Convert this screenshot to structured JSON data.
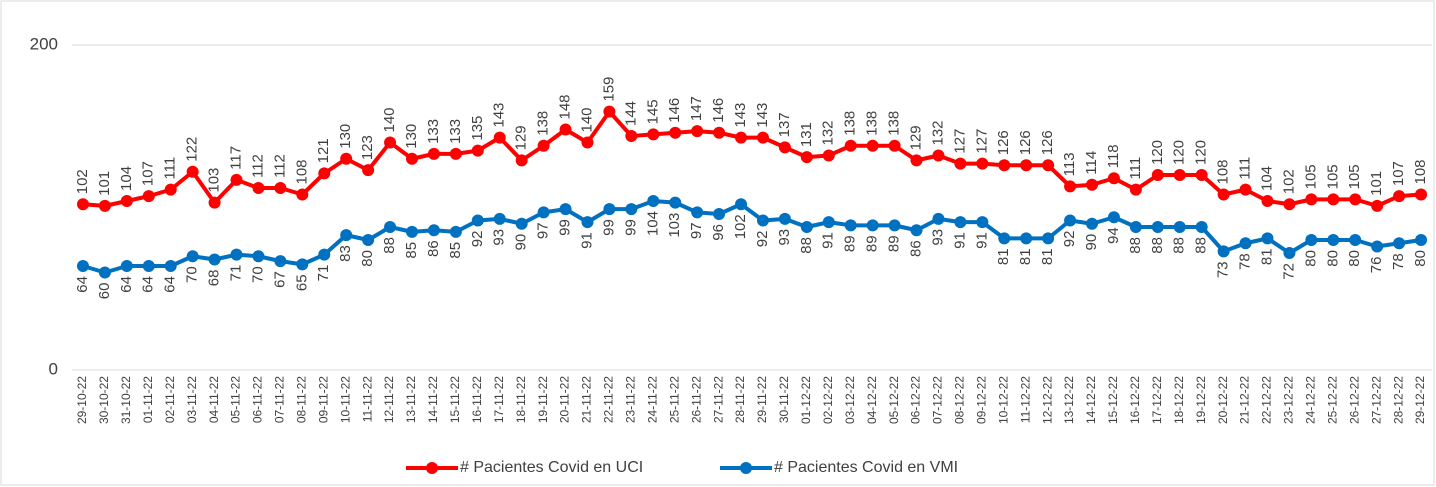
{
  "chart_data": {
    "type": "line",
    "categories": [
      "29-10-22",
      "30-10-22",
      "31-10-22",
      "01-11-22",
      "02-11-22",
      "03-11-22",
      "04-11-22",
      "05-11-22",
      "06-11-22",
      "07-11-22",
      "08-11-22",
      "09-11-22",
      "10-11-22",
      "11-11-22",
      "12-11-22",
      "13-11-22",
      "14-11-22",
      "15-11-22",
      "16-11-22",
      "17-11-22",
      "18-11-22",
      "19-11-22",
      "20-11-22",
      "21-11-22",
      "22-11-22",
      "23-11-22",
      "24-11-22",
      "25-11-22",
      "26-11-22",
      "27-11-22",
      "28-11-22",
      "29-11-22",
      "30-11-22",
      "01-12-22",
      "02-12-22",
      "03-12-22",
      "04-12-22",
      "05-12-22",
      "06-12-22",
      "07-12-22",
      "08-12-22",
      "09-12-22",
      "10-12-22",
      "11-12-22",
      "12-12-22",
      "13-12-22",
      "14-12-22",
      "15-12-22",
      "16-12-22",
      "17-12-22",
      "18-12-22",
      "19-12-22",
      "20-12-22",
      "21-12-22",
      "22-12-22",
      "23-12-22",
      "24-12-22",
      "25-12-22",
      "26-12-22",
      "27-12-22",
      "28-12-22",
      "29-12-22"
    ],
    "series": [
      {
        "name": "# Pacientes Covid en UCI",
        "color": "#ff0000",
        "values": [
          102,
          101,
          104,
          107,
          111,
          122,
          103,
          117,
          112,
          112,
          108,
          121,
          130,
          123,
          140,
          130,
          133,
          133,
          135,
          143,
          129,
          138,
          148,
          140,
          159,
          144,
          145,
          146,
          147,
          146,
          143,
          143,
          137,
          131,
          132,
          138,
          138,
          138,
          129,
          132,
          127,
          127,
          126,
          126,
          126,
          113,
          114,
          118,
          111,
          120,
          120,
          120,
          108,
          111,
          104,
          102,
          105,
          105,
          105,
          101,
          107,
          108
        ]
      },
      {
        "name": "# Pacientes Covid en VMI",
        "color": "#0070c0",
        "values": [
          64,
          60,
          64,
          64,
          64,
          70,
          68,
          71,
          70,
          67,
          65,
          71,
          83,
          80,
          88,
          85,
          86,
          85,
          92,
          93,
          90,
          97,
          99,
          91,
          99,
          99,
          104,
          103,
          97,
          96,
          102,
          92,
          93,
          88,
          91,
          89,
          89,
          89,
          86,
          93,
          91,
          91,
          81,
          81,
          81,
          92,
          90,
          94,
          88,
          88,
          88,
          88,
          73,
          78,
          81,
          72,
          80,
          80,
          80,
          76,
          78,
          80
        ]
      }
    ],
    "ylim": [
      0,
      200
    ],
    "yticks": [
      0,
      200
    ],
    "grid": true
  }
}
